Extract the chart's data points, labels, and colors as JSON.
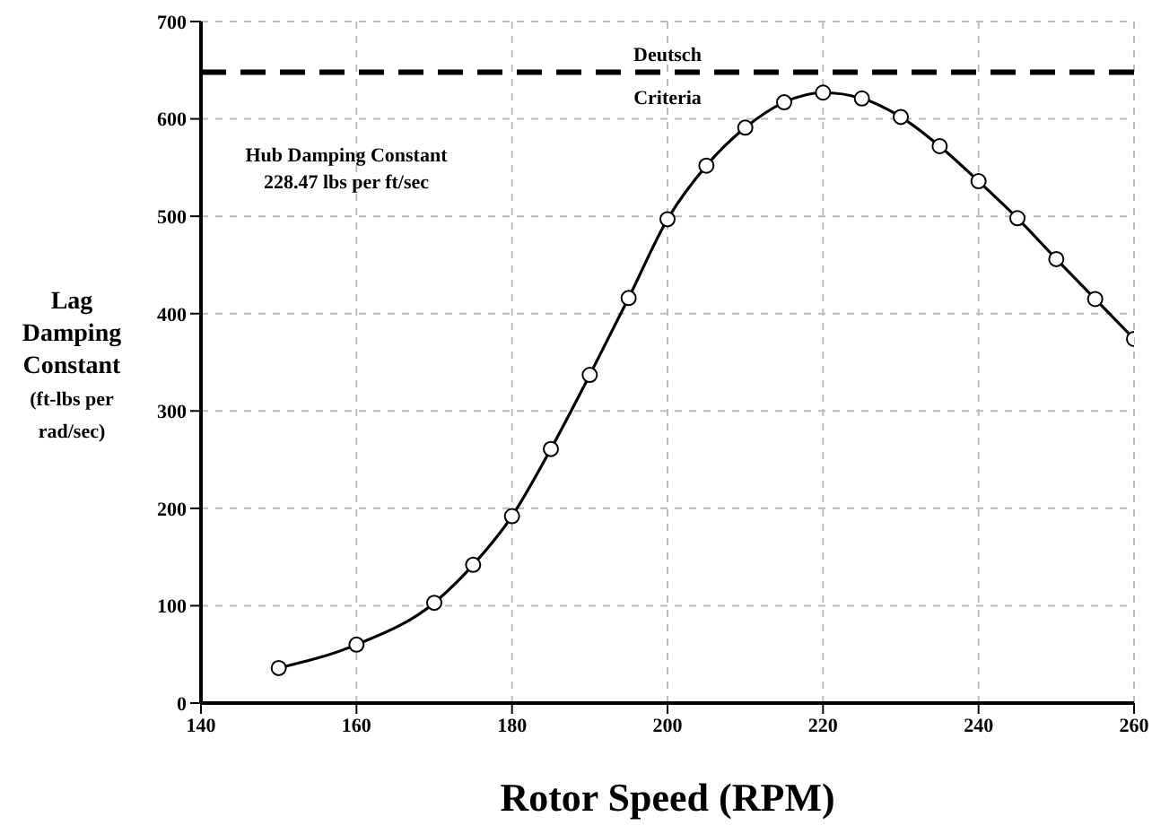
{
  "chart_data": {
    "type": "line",
    "xlabel": "Rotor Speed (RPM)",
    "ylabel": "Lag\nDamping\nConstant\n(ft-lbs per\nrad/sec)",
    "x": [
      150,
      160,
      170,
      175,
      180,
      185,
      190,
      195,
      200,
      205,
      210,
      215,
      220,
      225,
      230,
      235,
      240,
      245,
      250,
      255,
      260
    ],
    "series": [
      {
        "color": "#000000",
        "values": [
          36,
          60,
          103,
          142,
          192,
          261,
          337,
          416,
          497,
          552,
          591,
          617,
          627,
          621,
          602,
          572,
          536,
          498,
          456,
          415,
          374
        ]
      }
    ],
    "xlim": [
      140,
      260
    ],
    "xticks": [
      140,
      160,
      180,
      200,
      220,
      240,
      260
    ],
    "ylim": [
      0,
      700
    ],
    "yticks": [
      0,
      100,
      200,
      300,
      400,
      500,
      600,
      700
    ],
    "ref_lines": [
      {
        "axis": "y",
        "value": 648,
        "label": "Deutsch\nCriteria",
        "color": "#000000",
        "line_style": "dashed"
      }
    ],
    "annotations": [
      "Hub Damping Constant\n228.47 lbs per ft/sec"
    ],
    "grid": true,
    "marker": "circle",
    "line_style": "solid"
  }
}
